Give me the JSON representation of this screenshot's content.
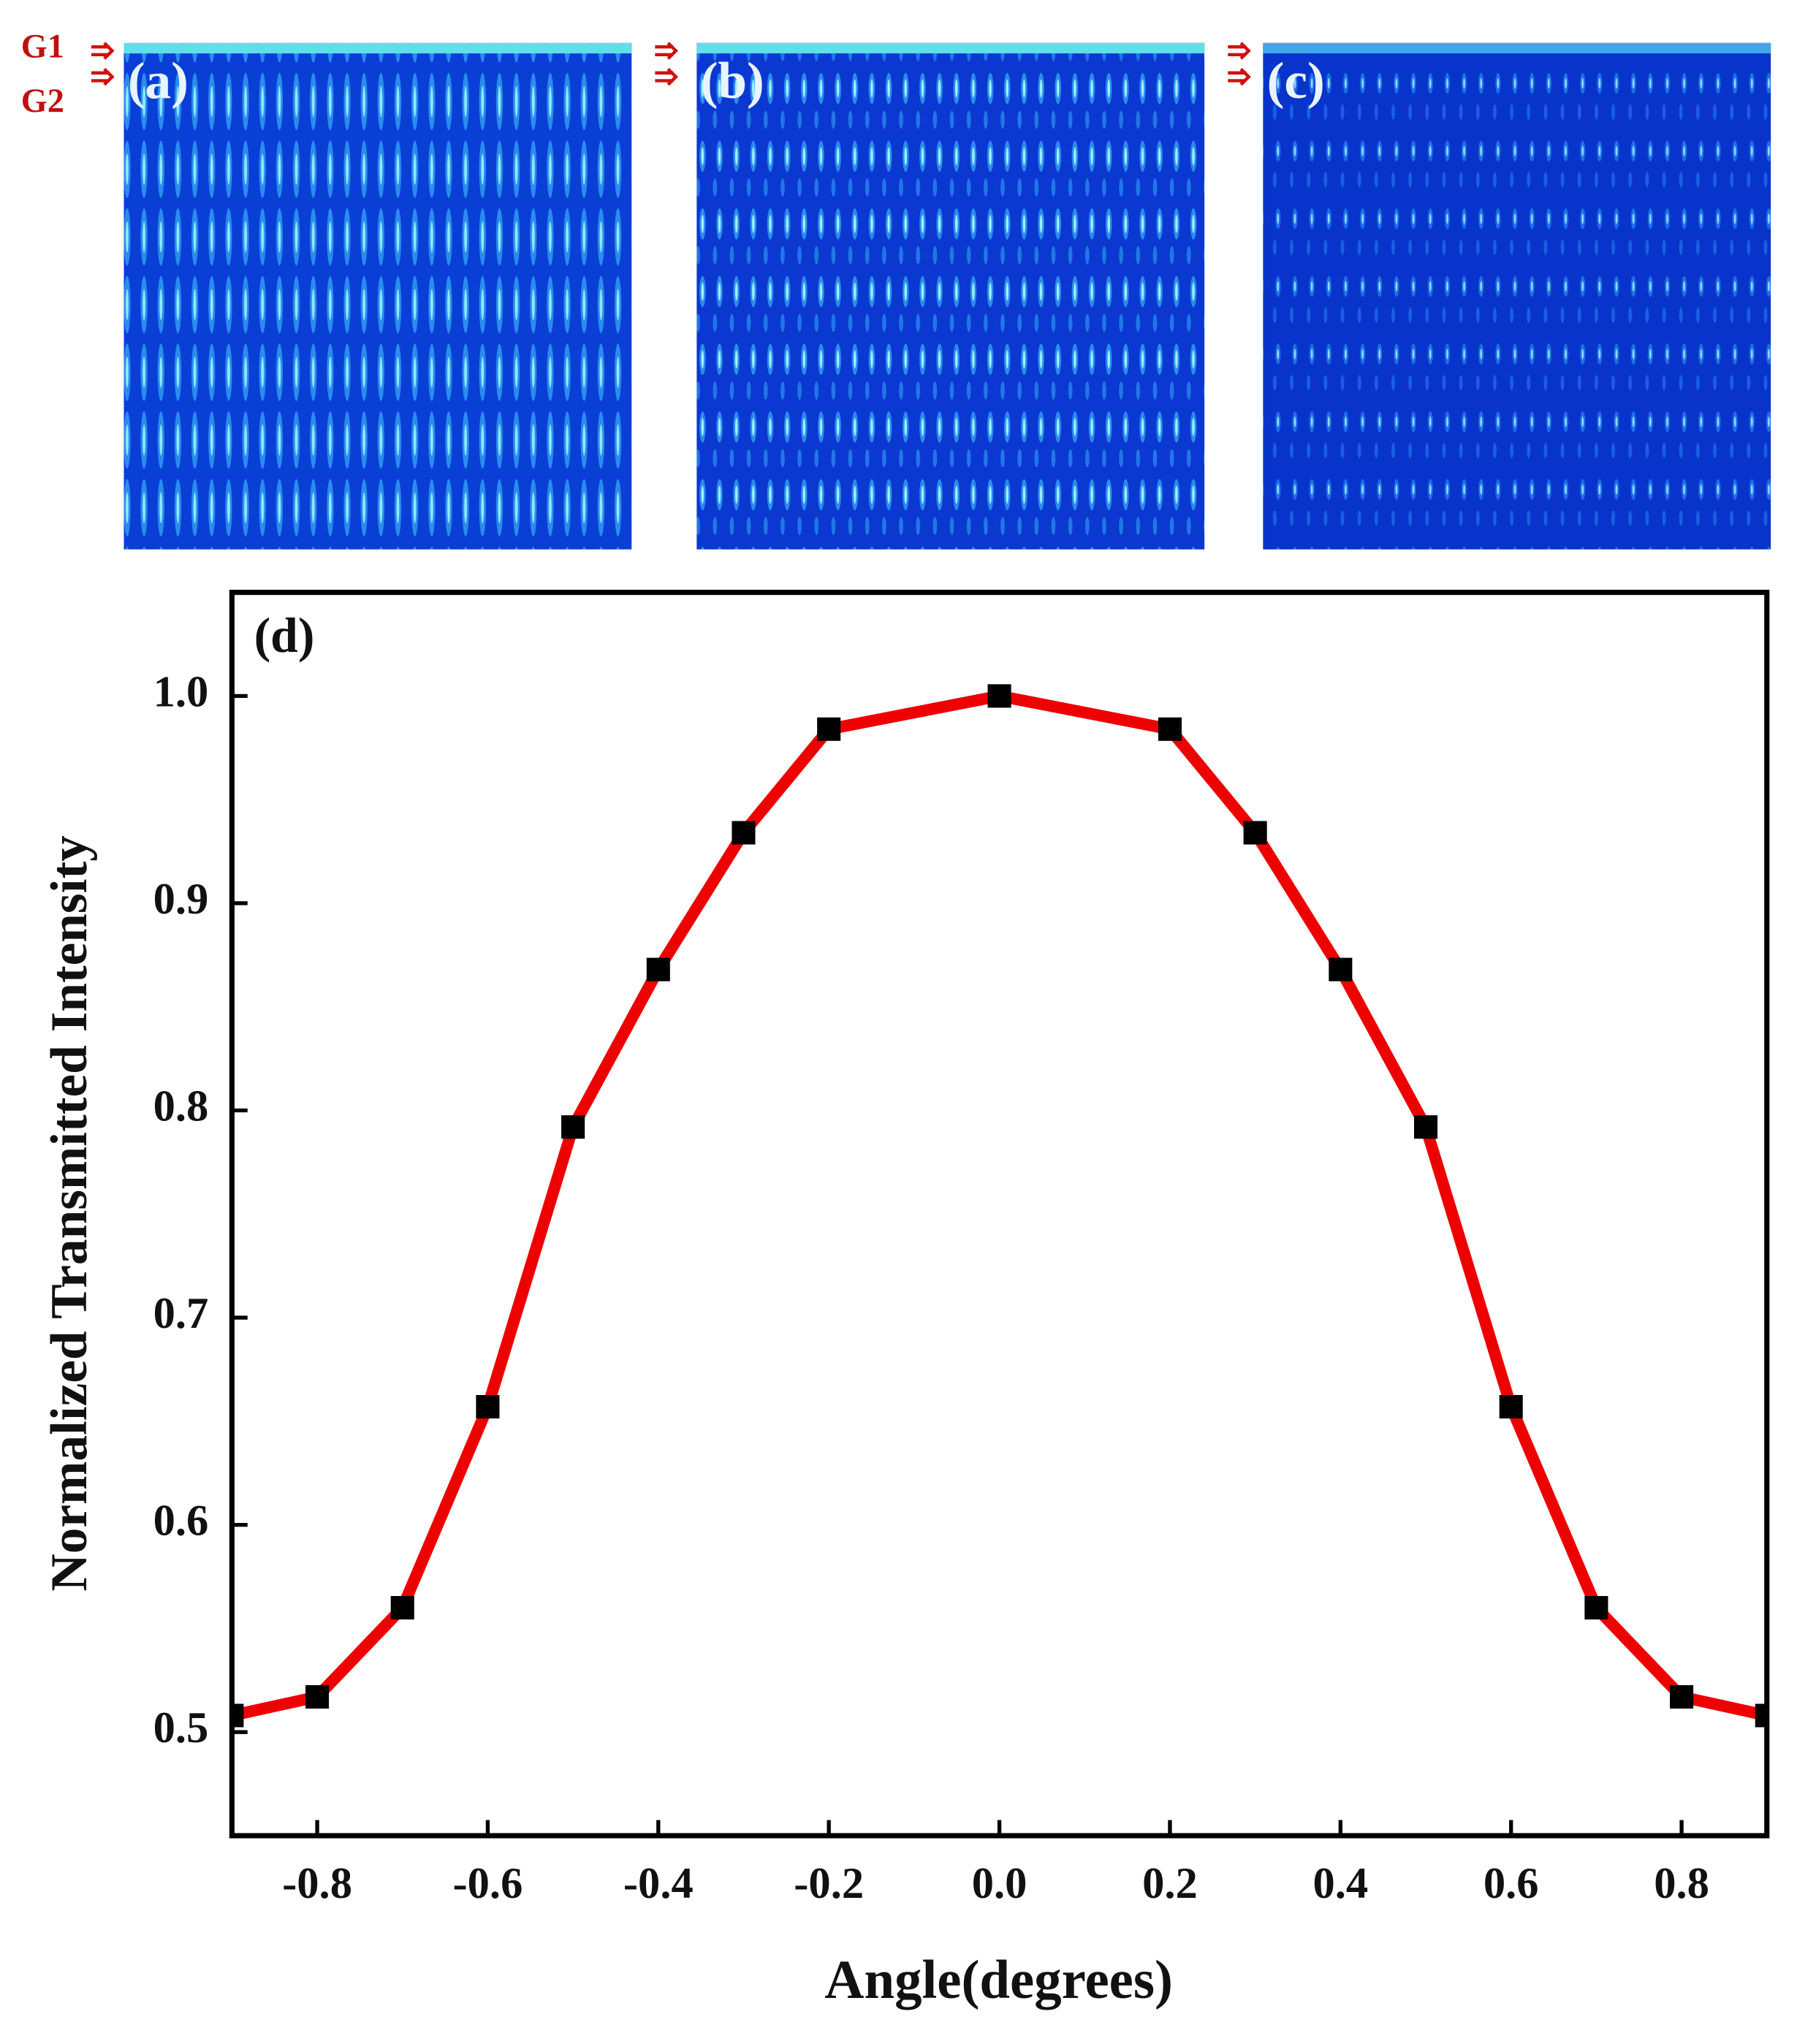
{
  "panels": {
    "labels": [
      "(a)",
      "(b)",
      "(c)"
    ],
    "g1": "G1",
    "g2": "G2"
  },
  "chart_data": {
    "type": "line",
    "panel_label": "(d)",
    "x_label": "Angle(degrees)",
    "y_label": "Normalized Transmitted Intensity",
    "x": [
      -0.9,
      -0.8,
      -0.7,
      -0.6,
      -0.5,
      -0.4,
      -0.3,
      -0.2,
      0,
      0.2,
      0.3,
      0.4,
      0.5,
      0.6,
      0.7,
      0.8,
      0.9
    ],
    "series": [
      {
        "color": "#ee0000",
        "marker_color": "#000000",
        "values": [
          0.508,
          0.517,
          0.56,
          0.657,
          0.792,
          0.868,
          0.934,
          0.984,
          1.0,
          0.984,
          0.934,
          0.868,
          0.792,
          0.657,
          0.56,
          0.517,
          0.508
        ]
      }
    ],
    "xlim": [
      -0.9,
      0.9
    ],
    "xticks": [
      -0.8,
      -0.6,
      -0.4,
      -0.2,
      {
        "value": 0,
        "label": "0.0"
      },
      0.2,
      0.4,
      0.6,
      0.8
    ],
    "ylim": [
      0.45,
      1.05
    ],
    "yticks": [
      0.5,
      0.6,
      0.7,
      0.8,
      0.9,
      {
        "value": 1,
        "label": "1.0"
      }
    ],
    "grid": false
  }
}
